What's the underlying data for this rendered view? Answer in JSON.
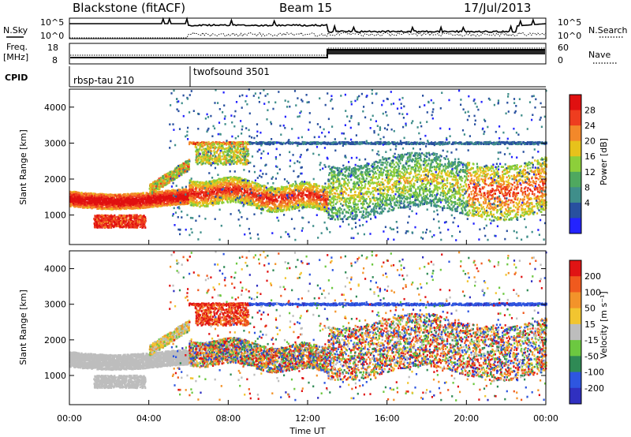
{
  "header": {
    "station": "Blackstone (fitACF)",
    "beam": "Beam 15",
    "date": "17/Jul/2013"
  },
  "noise_panel": {
    "left_label": "N.Sky",
    "right_label": "N.Search",
    "left_ticks": [
      "10^5",
      "10^0"
    ],
    "right_ticks": [
      "10^5",
      "10^0"
    ]
  },
  "freq_panel": {
    "left_label_line1": "Freq.",
    "left_label_line2": "[MHz]",
    "left_ticks": [
      "18",
      "8"
    ],
    "right_label": "Nave",
    "right_ticks": [
      "60",
      "0"
    ]
  },
  "cpid_panel": {
    "label": "CPID",
    "modes": [
      {
        "name": "rbsp-tau 210",
        "start_hour": 0
      },
      {
        "name": "twofsound 3501",
        "start_hour": 6
      }
    ]
  },
  "chart_data": [
    {
      "type": "heatmap",
      "name": "power",
      "ylabel": "Slant Range [km]",
      "y_ticks": [
        "1000",
        "2000",
        "3000",
        "4000"
      ],
      "ylim": [
        180,
        4500
      ],
      "xlim": [
        0,
        24
      ],
      "colorbar": {
        "label": "Power [dB]",
        "ticks": [
          "4",
          "8",
          "12",
          "16",
          "20",
          "24",
          "28"
        ],
        "colors": [
          "#2323ff",
          "#28509f",
          "#3f8e8a",
          "#4fa85f",
          "#8dcf3a",
          "#e7c21b",
          "#f3882a",
          "#ee3d1f",
          "#e01010"
        ]
      }
    },
    {
      "type": "heatmap",
      "name": "velocity",
      "ylabel": "Slant Range [km]",
      "y_ticks": [
        "1000",
        "2000",
        "3000",
        "4000"
      ],
      "ylim": [
        180,
        4500
      ],
      "xlim": [
        0,
        24
      ],
      "colorbar": {
        "label": "Velocity [m s⁻¹]",
        "ticks": [
          "200",
          "100",
          "50",
          "15",
          "-15",
          "-50",
          "-100",
          "-200"
        ],
        "colors": [
          "#3030c0",
          "#2e56e0",
          "#2f8a55",
          "#6cc840",
          "#bdbdbd",
          "#f2c530",
          "#f3932a",
          "#f05a1e",
          "#e01414"
        ]
      }
    }
  ],
  "x_axis": {
    "label": "Time UT",
    "ticks": [
      "00:00",
      "04:00",
      "08:00",
      "12:00",
      "16:00",
      "20:00",
      "00:00"
    ]
  }
}
